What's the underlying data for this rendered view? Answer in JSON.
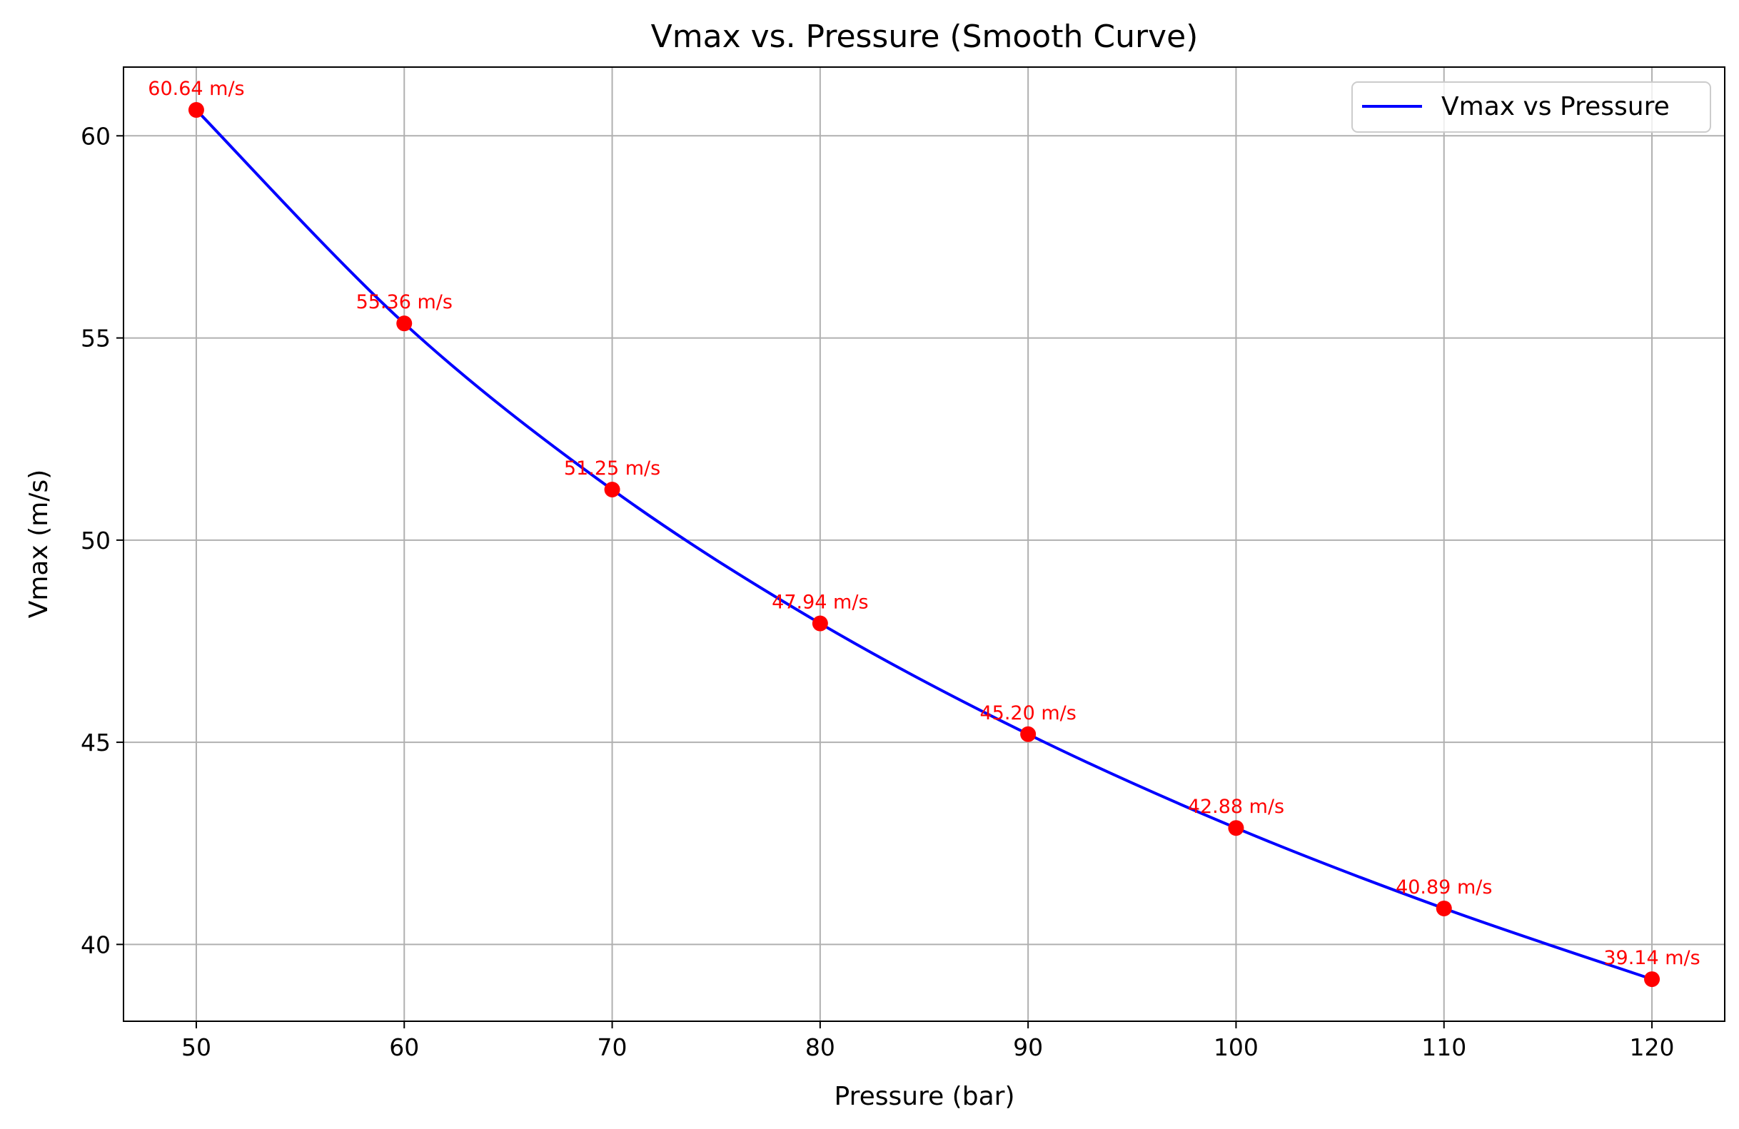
{
  "chart_data": {
    "type": "line",
    "title": "Vmax vs. Pressure (Smooth Curve)",
    "xlabel": "Pressure (bar)",
    "ylabel": "Vmax (m/s)",
    "xlim": [
      46.5,
      123.5
    ],
    "ylim": [
      38.1,
      61.7
    ],
    "x_ticks": [
      50,
      60,
      70,
      80,
      90,
      100,
      110,
      120
    ],
    "y_ticks": [
      40,
      45,
      50,
      55,
      60
    ],
    "grid": true,
    "legend_position": "top-right",
    "series": [
      {
        "name": "Vmax vs Pressure",
        "color": "#0000ff",
        "marker_color": "#ff0000",
        "x": [
          50,
          60,
          70,
          80,
          90,
          100,
          110,
          120
        ],
        "values": [
          60.64,
          55.36,
          51.25,
          47.94,
          45.2,
          42.88,
          40.89,
          39.14
        ],
        "labels": [
          "60.64 m/s",
          "55.36 m/s",
          "51.25 m/s",
          "47.94 m/s",
          "45.20 m/s",
          "42.88 m/s",
          "40.89 m/s",
          "39.14 m/s"
        ]
      }
    ]
  }
}
